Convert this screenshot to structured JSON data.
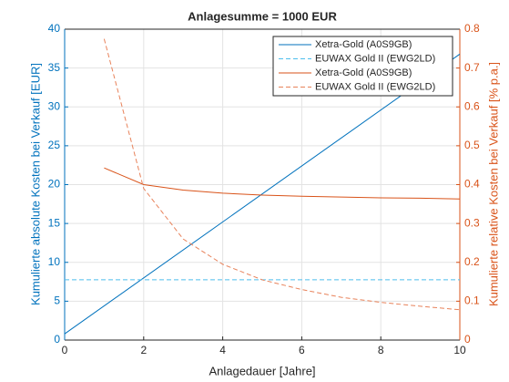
{
  "chart_data": {
    "type": "line",
    "title": "Anlagesumme = 1000 EUR",
    "x_label": "Anlagedauer [Jahre]",
    "y_label": "Kumulierte absolute Kosten bei Verkauf [EUR]",
    "y2_label": "Kumulierte relative Kosten bei Verkauf [% p.a.]",
    "xlim": [
      0,
      10
    ],
    "xticks": [
      0,
      2,
      4,
      6,
      8,
      10
    ],
    "ylim": [
      0,
      40
    ],
    "yticks": [
      0,
      5,
      10,
      15,
      20,
      25,
      30,
      35,
      40
    ],
    "y2lim": [
      0,
      0.8
    ],
    "y2ticks": [
      0,
      0.1,
      0.2,
      0.3,
      0.4,
      0.5,
      0.6,
      0.7,
      0.8
    ],
    "grid": true,
    "legend": "upper right",
    "y_color": "#0072BD",
    "y2_color": "#D95319",
    "series": [
      {
        "name": "Xetra-Gold (A0S9GB)",
        "color": "#0072BD",
        "dash": false,
        "axis": "y",
        "x": [
          0,
          10
        ],
        "values": [
          0.8,
          36.8
        ]
      },
      {
        "name": "EUWAX Gold II (EWG2LD)",
        "color": "#4DBEEE",
        "dash": true,
        "axis": "y",
        "x": [
          0,
          10
        ],
        "values": [
          7.75,
          7.75
        ]
      },
      {
        "name": "Xetra-Gold (A0S9GB)",
        "color": "#D95319",
        "dash": false,
        "axis": "y2",
        "x": [
          1,
          2,
          3,
          4,
          5,
          6,
          7,
          8,
          9,
          10
        ],
        "values": [
          0.443,
          0.4,
          0.386,
          0.378,
          0.373,
          0.37,
          0.368,
          0.366,
          0.365,
          0.363
        ]
      },
      {
        "name": "EUWAX Gold II (EWG2LD)",
        "color": "#E8825A",
        "dash": true,
        "axis": "y2",
        "x": [
          1,
          2,
          3,
          4,
          5,
          6,
          7,
          8,
          9,
          10
        ],
        "values": [
          0.775,
          0.39,
          0.26,
          0.195,
          0.155,
          0.13,
          0.11,
          0.097,
          0.087,
          0.078
        ]
      }
    ]
  }
}
